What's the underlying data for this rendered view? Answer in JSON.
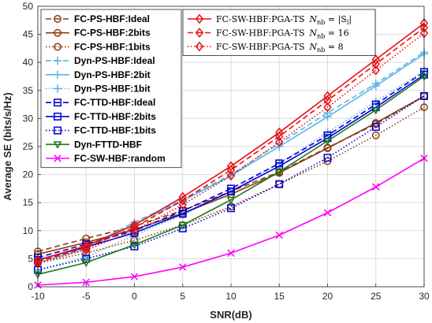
{
  "chart_data": {
    "type": "line",
    "xlabel": "SNR(dB)",
    "ylabel": "Average SE (bits/s/Hz)",
    "xlim": [
      -10,
      30
    ],
    "ylim": [
      0,
      50
    ],
    "xticks": [
      -10,
      -5,
      0,
      5,
      10,
      15,
      20,
      25,
      30
    ],
    "yticks": [
      0,
      5,
      10,
      15,
      20,
      25,
      30,
      35,
      40,
      45,
      50
    ],
    "grid": true,
    "x": [
      -10,
      -5,
      0,
      5,
      10,
      15,
      20,
      25,
      30
    ],
    "legends": [
      {
        "placement": "top-left",
        "entries": [
          0,
          1,
          2,
          3,
          4,
          5,
          6,
          7,
          8,
          9,
          10
        ],
        "font": "sans"
      },
      {
        "placement": "top-center",
        "entries": [
          11,
          12,
          13
        ],
        "font": "serif"
      }
    ],
    "series": [
      {
        "name": "FC-PS-HBF:Ideal",
        "color": "#8b3a0f",
        "dash": "dashed",
        "marker": "circle",
        "values": [
          6.3,
          8.6,
          10.8,
          13.6,
          17.0,
          20.5,
          24.8,
          29.0,
          34.0
        ]
      },
      {
        "name": "FC-PS-HBF:2bits",
        "color": "#8b3a0f",
        "dash": "solid",
        "marker": "circle",
        "values": [
          5.8,
          7.9,
          10.2,
          13.1,
          16.5,
          20.3,
          24.7,
          29.2,
          34.0
        ]
      },
      {
        "name": "FC-PS-HBF:1bits",
        "color": "#8b3a0f",
        "dash": "dotted",
        "marker": "circle",
        "values": [
          4.2,
          6.0,
          8.3,
          11.0,
          14.3,
          18.3,
          22.4,
          27.0,
          32.0
        ]
      },
      {
        "name": "Dyn-PS-HBF:Ideal",
        "color": "#5ab4e8",
        "dash": "dashed",
        "marker": "plus",
        "values": [
          4.5,
          7.0,
          11.5,
          15.5,
          20.0,
          25.5,
          31.0,
          36.2,
          41.8
        ]
      },
      {
        "name": "Dyn-PS-HBF:2bit",
        "color": "#5ab4e8",
        "dash": "solid",
        "marker": "plus",
        "values": [
          4.3,
          6.8,
          11.2,
          15.3,
          19.8,
          25.0,
          30.3,
          35.8,
          41.5
        ]
      },
      {
        "name": "Dyn-PS-HBF:1bit",
        "color": "#5ab4e8",
        "dash": "dotted",
        "marker": "plus",
        "values": [
          3.0,
          5.3,
          9.2,
          12.8,
          17.0,
          22.0,
          27.5,
          33.0,
          38.5
        ]
      },
      {
        "name": "FC-TTD-HBF:Ideal",
        "color": "#0000d0",
        "dash": "dashed",
        "marker": "square",
        "values": [
          5.2,
          7.6,
          10.0,
          13.5,
          17.5,
          22.0,
          27.0,
          32.5,
          38.3
        ]
      },
      {
        "name": "FC-TTD-HBF:2bits",
        "color": "#0000d0",
        "dash": "solid",
        "marker": "square",
        "values": [
          4.8,
          7.1,
          9.6,
          13.0,
          17.0,
          21.5,
          26.5,
          32.0,
          37.8
        ]
      },
      {
        "name": "FC-TTD-HBF:1bits",
        "color": "#0000d0",
        "dash": "dotted",
        "marker": "square",
        "values": [
          3.0,
          5.0,
          7.2,
          10.4,
          14.0,
          18.3,
          23.0,
          28.5,
          34.0
        ]
      },
      {
        "name": "Dyn-FTTD-HBF",
        "color": "#1a7a1a",
        "dash": "solid",
        "marker": "triangle-down",
        "values": [
          2.2,
          4.3,
          7.5,
          11.0,
          15.5,
          20.5,
          26.0,
          31.5,
          37.5
        ]
      },
      {
        "name": "FC-SW-HBF:random",
        "color": "#ff00ff",
        "dash": "solid",
        "marker": "x",
        "values": [
          0.3,
          0.8,
          1.8,
          3.5,
          6.0,
          9.2,
          13.2,
          17.8,
          22.9
        ]
      },
      {
        "name": "FC-SW-HBF:PGA-TS  N_nb = |S_l|",
        "label_main": "FC-SW-HBF:PGA-TS",
        "label_sym": "N",
        "label_sub": "nb",
        "label_tail": " = |S",
        "label_tail_sub": "l",
        "label_tail_end": "|",
        "color": "#e81010",
        "dash": "solid",
        "marker": "diamond",
        "values": [
          4.7,
          7.3,
          11.0,
          16.0,
          21.5,
          27.5,
          34.0,
          40.5,
          47.0
        ]
      },
      {
        "name": "FC-SW-HBF:PGA-TS  N_nb = 16",
        "label_main": "FC-SW-HBF:PGA-TS",
        "label_sym": "N",
        "label_sub": "nb",
        "label_tail": " = 16",
        "label_tail_sub": "",
        "label_tail_end": "",
        "color": "#e81010",
        "dash": "dashed",
        "marker": "diamond",
        "values": [
          4.5,
          7.0,
          10.6,
          15.4,
          20.8,
          26.8,
          33.2,
          39.7,
          46.2
        ]
      },
      {
        "name": "FC-SW-HBF:PGA-TS  N_nb = 8",
        "label_main": "FC-SW-HBF:PGA-TS",
        "label_sym": "N",
        "label_sub": "nb",
        "label_tail": " = 8",
        "label_tail_sub": "",
        "label_tail_end": "",
        "color": "#e81010",
        "dash": "dotted",
        "marker": "diamond",
        "values": [
          4.2,
          6.6,
          10.0,
          14.6,
          19.8,
          25.8,
          32.0,
          38.6,
          45.2
        ]
      }
    ]
  }
}
